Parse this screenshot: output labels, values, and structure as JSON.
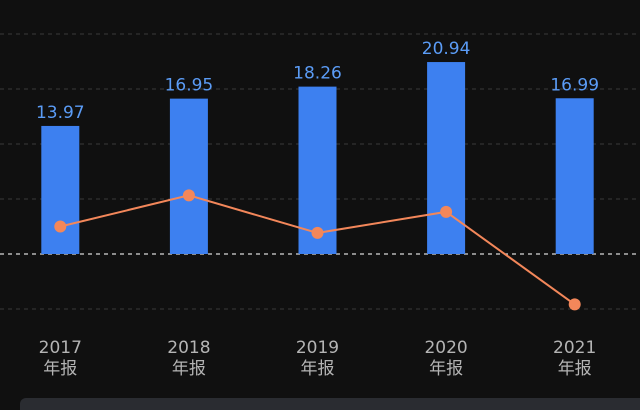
{
  "chart_data": {
    "type": "bar",
    "categories": [
      "2017年报",
      "2018年报",
      "2019年报",
      "2020年报",
      "2021年报"
    ],
    "series": [
      {
        "type": "bar",
        "color": "#3d80f0",
        "values": [
          13.97,
          16.95,
          18.26,
          20.94,
          16.99
        ]
      },
      {
        "type": "line",
        "color": "#f3875a",
        "values": [
          3.0,
          6.4,
          2.3,
          4.6,
          -5.5
        ]
      }
    ],
    "ylim": [
      -6,
      24
    ],
    "yticks": [
      -6,
      0,
      6,
      12,
      18,
      24
    ],
    "grid": true
  }
}
